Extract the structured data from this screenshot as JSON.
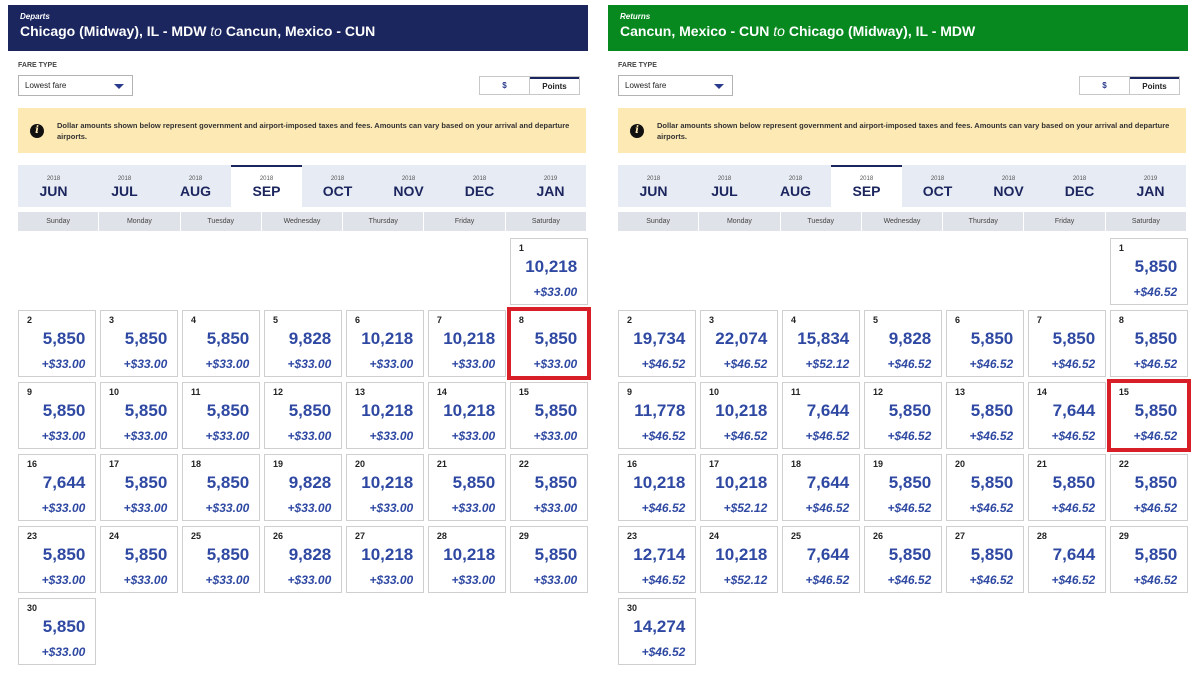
{
  "panels": [
    {
      "kicker": "Departs",
      "origin": "Chicago (Midway), IL - MDW",
      "to_word": "to",
      "destination": "Cancun, Mexico - CUN",
      "header_color": "#1b255e",
      "fare_type_label": "FARE TYPE",
      "fare_type_value": "Lowest fare",
      "toggle": {
        "dollar": "$",
        "points": "Points",
        "active": "points"
      },
      "notice": "Dollar amounts shown below represent government and airport-imposed taxes and fees. Amounts can vary based on your arrival and departure airports.",
      "months": [
        {
          "year": "2018",
          "name": "JUN"
        },
        {
          "year": "2018",
          "name": "JUL"
        },
        {
          "year": "2018",
          "name": "AUG"
        },
        {
          "year": "2018",
          "name": "SEP",
          "active": true
        },
        {
          "year": "2018",
          "name": "OCT"
        },
        {
          "year": "2018",
          "name": "NOV"
        },
        {
          "year": "2018",
          "name": "DEC"
        },
        {
          "year": "2019",
          "name": "JAN"
        }
      ],
      "weekdays": [
        "Sunday",
        "Monday",
        "Tuesday",
        "Wednesday",
        "Thursday",
        "Friday",
        "Saturday"
      ],
      "leading_blanks": 6,
      "selected_day": "8",
      "days": [
        {
          "day": "1",
          "points": "10,218",
          "tax": "+$33.00"
        },
        {
          "day": "2",
          "points": "5,850",
          "tax": "+$33.00"
        },
        {
          "day": "3",
          "points": "5,850",
          "tax": "+$33.00"
        },
        {
          "day": "4",
          "points": "5,850",
          "tax": "+$33.00"
        },
        {
          "day": "5",
          "points": "9,828",
          "tax": "+$33.00"
        },
        {
          "day": "6",
          "points": "10,218",
          "tax": "+$33.00"
        },
        {
          "day": "7",
          "points": "10,218",
          "tax": "+$33.00"
        },
        {
          "day": "8",
          "points": "5,850",
          "tax": "+$33.00"
        },
        {
          "day": "9",
          "points": "5,850",
          "tax": "+$33.00"
        },
        {
          "day": "10",
          "points": "5,850",
          "tax": "+$33.00"
        },
        {
          "day": "11",
          "points": "5,850",
          "tax": "+$33.00"
        },
        {
          "day": "12",
          "points": "5,850",
          "tax": "+$33.00"
        },
        {
          "day": "13",
          "points": "10,218",
          "tax": "+$33.00"
        },
        {
          "day": "14",
          "points": "10,218",
          "tax": "+$33.00"
        },
        {
          "day": "15",
          "points": "5,850",
          "tax": "+$33.00"
        },
        {
          "day": "16",
          "points": "7,644",
          "tax": "+$33.00"
        },
        {
          "day": "17",
          "points": "5,850",
          "tax": "+$33.00"
        },
        {
          "day": "18",
          "points": "5,850",
          "tax": "+$33.00"
        },
        {
          "day": "19",
          "points": "9,828",
          "tax": "+$33.00"
        },
        {
          "day": "20",
          "points": "10,218",
          "tax": "+$33.00"
        },
        {
          "day": "21",
          "points": "5,850",
          "tax": "+$33.00"
        },
        {
          "day": "22",
          "points": "5,850",
          "tax": "+$33.00"
        },
        {
          "day": "23",
          "points": "5,850",
          "tax": "+$33.00"
        },
        {
          "day": "24",
          "points": "5,850",
          "tax": "+$33.00"
        },
        {
          "day": "25",
          "points": "5,850",
          "tax": "+$33.00"
        },
        {
          "day": "26",
          "points": "9,828",
          "tax": "+$33.00"
        },
        {
          "day": "27",
          "points": "10,218",
          "tax": "+$33.00"
        },
        {
          "day": "28",
          "points": "10,218",
          "tax": "+$33.00"
        },
        {
          "day": "29",
          "points": "5,850",
          "tax": "+$33.00"
        },
        {
          "day": "30",
          "points": "5,850",
          "tax": "+$33.00"
        }
      ]
    },
    {
      "kicker": "Returns",
      "origin": "Cancun, Mexico - CUN",
      "to_word": "to",
      "destination": "Chicago (Midway), IL - MDW",
      "header_color": "#07891f",
      "fare_type_label": "FARE TYPE",
      "fare_type_value": "Lowest fare",
      "toggle": {
        "dollar": "$",
        "points": "Points",
        "active": "points"
      },
      "notice": "Dollar amounts shown below represent government and airport-imposed taxes and fees. Amounts can vary based on your arrival and departure airports.",
      "months": [
        {
          "year": "2018",
          "name": "JUN"
        },
        {
          "year": "2018",
          "name": "JUL"
        },
        {
          "year": "2018",
          "name": "AUG"
        },
        {
          "year": "2018",
          "name": "SEP",
          "active": true
        },
        {
          "year": "2018",
          "name": "OCT"
        },
        {
          "year": "2018",
          "name": "NOV"
        },
        {
          "year": "2018",
          "name": "DEC"
        },
        {
          "year": "2019",
          "name": "JAN"
        }
      ],
      "weekdays": [
        "Sunday",
        "Monday",
        "Tuesday",
        "Wednesday",
        "Thursday",
        "Friday",
        "Saturday"
      ],
      "leading_blanks": 6,
      "selected_day": "15",
      "days": [
        {
          "day": "1",
          "points": "5,850",
          "tax": "+$46.52"
        },
        {
          "day": "2",
          "points": "19,734",
          "tax": "+$46.52"
        },
        {
          "day": "3",
          "points": "22,074",
          "tax": "+$46.52"
        },
        {
          "day": "4",
          "points": "15,834",
          "tax": "+$52.12"
        },
        {
          "day": "5",
          "points": "9,828",
          "tax": "+$46.52"
        },
        {
          "day": "6",
          "points": "5,850",
          "tax": "+$46.52"
        },
        {
          "day": "7",
          "points": "5,850",
          "tax": "+$46.52"
        },
        {
          "day": "8",
          "points": "5,850",
          "tax": "+$46.52"
        },
        {
          "day": "9",
          "points": "11,778",
          "tax": "+$46.52"
        },
        {
          "day": "10",
          "points": "10,218",
          "tax": "+$46.52"
        },
        {
          "day": "11",
          "points": "7,644",
          "tax": "+$46.52"
        },
        {
          "day": "12",
          "points": "5,850",
          "tax": "+$46.52"
        },
        {
          "day": "13",
          "points": "5,850",
          "tax": "+$46.52"
        },
        {
          "day": "14",
          "points": "7,644",
          "tax": "+$46.52"
        },
        {
          "day": "15",
          "points": "5,850",
          "tax": "+$46.52"
        },
        {
          "day": "16",
          "points": "10,218",
          "tax": "+$46.52"
        },
        {
          "day": "17",
          "points": "10,218",
          "tax": "+$52.12"
        },
        {
          "day": "18",
          "points": "7,644",
          "tax": "+$46.52"
        },
        {
          "day": "19",
          "points": "5,850",
          "tax": "+$46.52"
        },
        {
          "day": "20",
          "points": "5,850",
          "tax": "+$46.52"
        },
        {
          "day": "21",
          "points": "5,850",
          "tax": "+$46.52"
        },
        {
          "day": "22",
          "points": "5,850",
          "tax": "+$46.52"
        },
        {
          "day": "23",
          "points": "12,714",
          "tax": "+$46.52"
        },
        {
          "day": "24",
          "points": "10,218",
          "tax": "+$52.12"
        },
        {
          "day": "25",
          "points": "7,644",
          "tax": "+$46.52"
        },
        {
          "day": "26",
          "points": "5,850",
          "tax": "+$46.52"
        },
        {
          "day": "27",
          "points": "5,850",
          "tax": "+$46.52"
        },
        {
          "day": "28",
          "points": "7,644",
          "tax": "+$46.52"
        },
        {
          "day": "29",
          "points": "5,850",
          "tax": "+$46.52"
        },
        {
          "day": "30",
          "points": "14,274",
          "tax": "+$46.52"
        }
      ]
    }
  ],
  "colors": {
    "selected_outline": "#d81f28",
    "fare_blue": "#2f49a3"
  }
}
